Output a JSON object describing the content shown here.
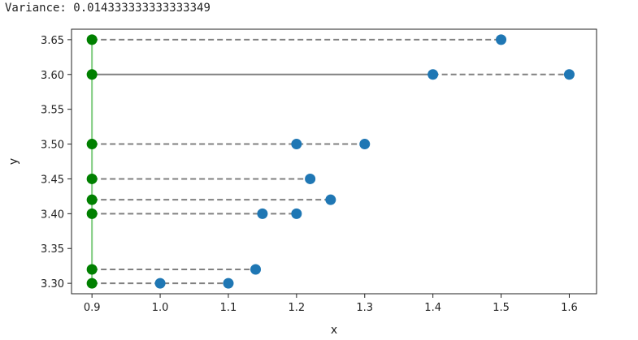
{
  "output": {
    "label": "Variance:",
    "value": "0.014333333333333349"
  },
  "chart_data": {
    "type": "scatter",
    "xlabel": "x",
    "ylabel": "y",
    "xlim": [
      0.87,
      1.64
    ],
    "ylim": [
      3.285,
      3.665
    ],
    "xticks": [
      0.9,
      1.0,
      1.1,
      1.2,
      1.3,
      1.4,
      1.5,
      1.6
    ],
    "yticks": [
      3.3,
      3.35,
      3.4,
      3.45,
      3.5,
      3.55,
      3.6,
      3.65
    ],
    "grid": false,
    "colors": {
      "points": "#1f77b4",
      "reference_points": "#008000",
      "reference_line": "#7fcc7f",
      "connector": "#808080"
    },
    "reference_line": {
      "x": 0.9,
      "y_from": 3.3,
      "y_to": 3.65
    },
    "rows": [
      {
        "y": 3.65,
        "x_points": [
          1.5
        ]
      },
      {
        "y": 3.6,
        "x_points": [
          1.4,
          1.6
        ],
        "solid_to": 1.4
      },
      {
        "y": 3.5,
        "x_points": [
          1.2,
          1.3
        ]
      },
      {
        "y": 3.45,
        "x_points": [
          1.22
        ]
      },
      {
        "y": 3.42,
        "x_points": [
          1.25
        ]
      },
      {
        "y": 3.4,
        "x_points": [
          1.15,
          1.2
        ]
      },
      {
        "y": 3.32,
        "x_points": [
          1.14
        ]
      },
      {
        "y": 3.3,
        "x_points": [
          1.0,
          1.1
        ]
      }
    ]
  }
}
